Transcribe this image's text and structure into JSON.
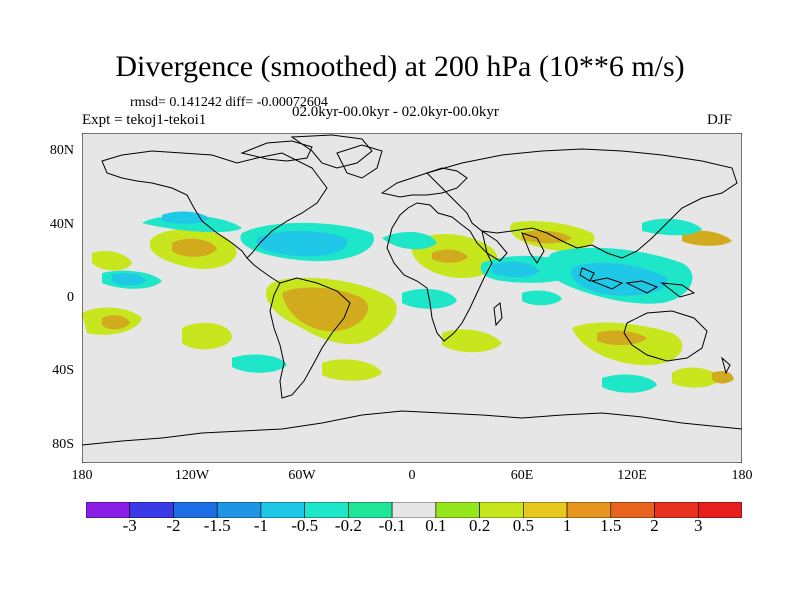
{
  "title": "Divergence (smoothed) at 200 hPa (10**6 m/s)",
  "stats": "rmsd= 0.141242 diff= -0.00072604",
  "experiment": "Expt = tekoj1-tekoi1",
  "period": "02.0kyr-00.0kyr - 02.0kyr-00.0kyr",
  "season": "DJF",
  "lat_labels": [
    "80N",
    "40N",
    "0",
    "40S",
    "80S"
  ],
  "lon_labels": [
    "180",
    "120W",
    "60W",
    "0",
    "60E",
    "120E",
    "180"
  ],
  "colorbar": {
    "labels": [
      "-3",
      "-2",
      "-1.5",
      "-1",
      "-0.5",
      "-0.2",
      "-0.1",
      "0.1",
      "0.2",
      "0.5",
      "1",
      "1.5",
      "2",
      "3"
    ],
    "colors": [
      "#8a1ee6",
      "#3a3ae6",
      "#1e6ee6",
      "#1e96e6",
      "#1ec8e6",
      "#1ee6c8",
      "#1ee696",
      "#e6e6e6",
      "#96e61e",
      "#c8e61e",
      "#e6c81e",
      "#e6961e",
      "#e6641e",
      "#e6321e",
      "#e61e1e"
    ]
  },
  "colors": {
    "background": "#e6e6e6",
    "positive_weak": "#c8e61e",
    "positive": "#d2aa1e",
    "negative_weak": "#1ee6c8",
    "negative": "#1ec8e6",
    "coast": "#000000"
  }
}
